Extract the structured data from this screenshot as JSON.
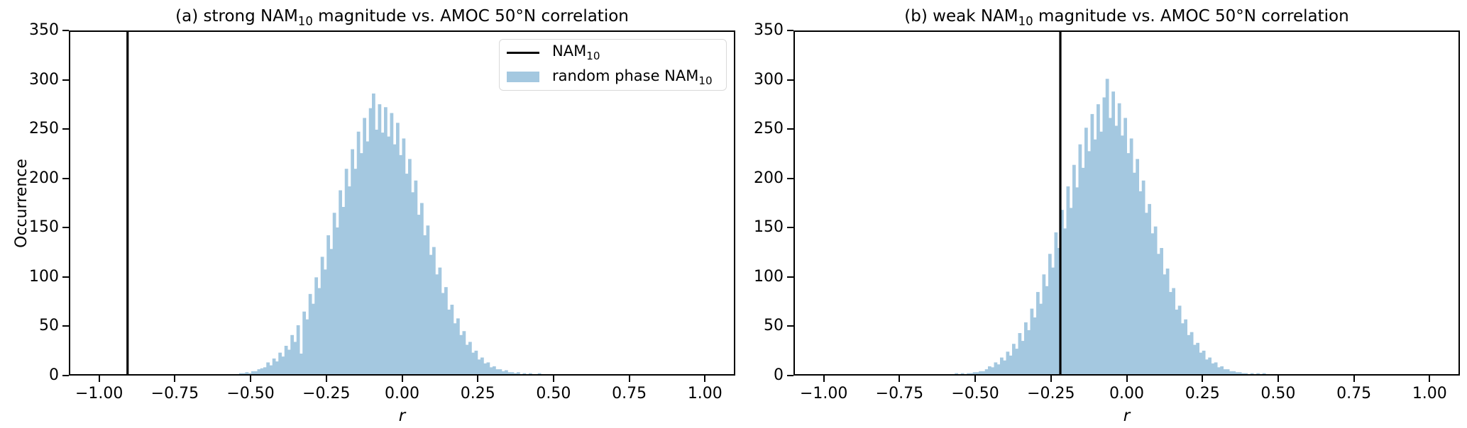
{
  "figure": {
    "background": "#ffffff",
    "text_color": "#000000"
  },
  "legend": {
    "items": [
      {
        "swatch": "line",
        "color": "#000000",
        "label_pre": "NAM",
        "label_sub": "10"
      },
      {
        "swatch": "patch",
        "color": "#a4c8e0",
        "label_pre": "random phase NAM",
        "label_sub": "10"
      }
    ]
  },
  "chart_data": [
    {
      "type": "histogram",
      "panel": "a",
      "title": {
        "pre": "(a) strong NAM",
        "sub": "10",
        "post": " magnitude vs. AMOC 50°N correlation"
      },
      "xlabel": "r",
      "ylabel": "Occurrence",
      "xlim": [
        -1.1,
        1.1
      ],
      "ylim": [
        0,
        350
      ],
      "grid": false,
      "legend_position": "upper center",
      "xticks": {
        "values": [
          -1.0,
          -0.75,
          -0.5,
          -0.25,
          0.0,
          0.25,
          0.5,
          0.75,
          1.0
        ],
        "labels": [
          "−1.00",
          "−0.75",
          "−0.50",
          "−0.25",
          "0.00",
          "0.25",
          "0.50",
          "0.75",
          "1.00"
        ]
      },
      "yticks": {
        "values": [
          0,
          50,
          100,
          150,
          200,
          250,
          300,
          350
        ],
        "labels": [
          "0",
          "50",
          "100",
          "150",
          "200",
          "250",
          "300",
          "350"
        ]
      },
      "bar_color": "#a4c8e0",
      "bin_start": -0.54,
      "bin_width": 0.01,
      "values": [
        1,
        1,
        2,
        1,
        3,
        3,
        5,
        6,
        7,
        12,
        9,
        16,
        13,
        22,
        18,
        29,
        25,
        40,
        33,
        50,
        21,
        64,
        56,
        82,
        72,
        99,
        88,
        120,
        107,
        142,
        128,
        165,
        150,
        188,
        171,
        210,
        192,
        230,
        210,
        248,
        226,
        262,
        238,
        272,
        287,
        250,
        276,
        247,
        273,
        243,
        267,
        235,
        257,
        224,
        241,
        205,
        220,
        186,
        198,
        163,
        175,
        142,
        152,
        122,
        130,
        102,
        109,
        83,
        89,
        66,
        71,
        52,
        57,
        40,
        44,
        30,
        33,
        22,
        24,
        15,
        17,
        11,
        12,
        7,
        8,
        5,
        5,
        3,
        4,
        2,
        2,
        1,
        2,
        0,
        1,
        0,
        1,
        0,
        0,
        1
      ],
      "nam_line_r": -0.91,
      "nam_line_color": "#000000"
    },
    {
      "type": "histogram",
      "panel": "b",
      "title": {
        "pre": "(b) weak NAM",
        "sub": "10",
        "post": " magnitude vs. AMOC 50°N correlation"
      },
      "xlabel": "r",
      "ylabel": "",
      "xlim": [
        -1.1,
        1.1
      ],
      "ylim": [
        0,
        350
      ],
      "grid": false,
      "xticks": {
        "values": [
          -1.0,
          -0.75,
          -0.5,
          -0.25,
          0.0,
          0.25,
          0.5,
          0.75,
          1.0
        ],
        "labels": [
          "−1.00",
          "−0.75",
          "−0.50",
          "−0.25",
          "0.00",
          "0.25",
          "0.50",
          "0.75",
          "1.00"
        ]
      },
      "yticks": {
        "values": [
          0,
          50,
          100,
          150,
          200,
          250,
          300,
          350
        ],
        "labels": [
          "0",
          "50",
          "100",
          "150",
          "200",
          "250",
          "300",
          "350"
        ]
      },
      "bar_color": "#a4c8e0",
      "bin_start": -0.57,
      "bin_width": 0.01,
      "values": [
        1,
        0,
        1,
        0,
        1,
        1,
        2,
        2,
        3,
        3,
        5,
        8,
        7,
        12,
        10,
        17,
        14,
        23,
        19,
        31,
        26,
        42,
        34,
        53,
        45,
        67,
        58,
        84,
        72,
        102,
        90,
        123,
        109,
        145,
        129,
        168,
        149,
        192,
        170,
        214,
        191,
        235,
        211,
        252,
        228,
        266,
        240,
        276,
        248,
        283,
        302,
        262,
        289,
        254,
        277,
        244,
        262,
        226,
        241,
        206,
        220,
        187,
        198,
        165,
        174,
        144,
        151,
        123,
        129,
        102,
        108,
        84,
        88,
        66,
        70,
        52,
        56,
        40,
        43,
        30,
        32,
        22,
        24,
        15,
        17,
        11,
        12,
        7,
        8,
        5,
        5,
        3,
        3,
        2,
        2,
        1,
        1,
        0,
        1,
        0,
        1,
        0,
        1
      ],
      "nam_line_r": -0.22,
      "nam_line_color": "#000000"
    }
  ]
}
